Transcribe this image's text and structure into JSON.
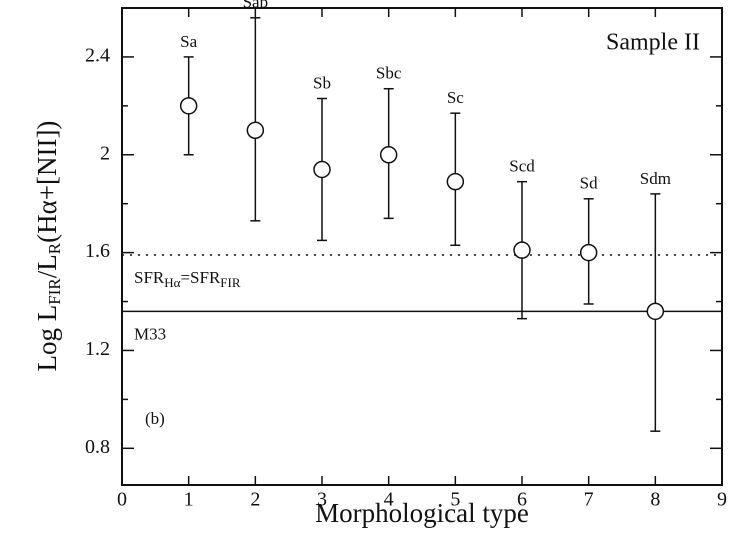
{
  "chart_data": {
    "type": "scatter",
    "xlabel": "Morphological type",
    "ylabel_parts": [
      "Log L",
      "FIR",
      "/L",
      "R",
      "(Hα+[NII])"
    ],
    "x": [
      1,
      2,
      3,
      4,
      5,
      6,
      7,
      8
    ],
    "values": [
      2.2,
      2.1,
      1.94,
      2.0,
      1.89,
      1.61,
      1.6,
      1.36
    ],
    "yerr_lower": [
      0.2,
      0.37,
      0.29,
      0.26,
      0.26,
      0.28,
      0.21,
      0.49
    ],
    "yerr_upper": [
      0.2,
      0.46,
      0.29,
      0.27,
      0.28,
      0.28,
      0.22,
      0.48
    ],
    "point_labels": [
      "Sa",
      "Sab",
      "Sb",
      "Sbc",
      "Sc",
      "Scd",
      "Sd",
      "Sdm"
    ],
    "color": "#111111",
    "xlim": [
      0,
      9
    ],
    "xticks": [
      0,
      1,
      2,
      3,
      4,
      5,
      6,
      7,
      8,
      9
    ],
    "ylim": [
      0.65,
      2.6
    ],
    "yticks": [
      0.8,
      1.2,
      1.6,
      2,
      2.4
    ],
    "yticks_minor": [
      1.0,
      1.4,
      1.8,
      2.2
    ],
    "hlines": [
      {
        "y": 1.59,
        "style": "dotted",
        "label_parts": [
          "SFR",
          "Hα",
          "=SFR",
          "FIR"
        ]
      },
      {
        "y": 1.36,
        "style": "solid",
        "label_parts": [
          "M33"
        ]
      }
    ],
    "annotations": [
      "Sample II",
      "(b)"
    ]
  }
}
